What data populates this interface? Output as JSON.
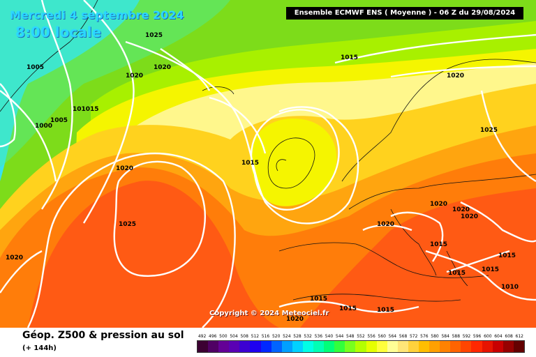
{
  "header": {
    "date": "Mercredi 4 septembre 2024",
    "local_time": "8:00 locale",
    "model_info": "Ensemble ECMWF ENS  ( Moyenne )  -  06 Z du 29/08/2024"
  },
  "copyright": "Copyright © 2024 Meteociel.fr",
  "footer": {
    "title": "Géop. Z500 & pression au sol",
    "subtitle": "(+ 144h)"
  },
  "isobar_labels": [
    "1025",
    "1005",
    "1020",
    "1020",
    "1015",
    "1000",
    "1005",
    "101015",
    "1020",
    "1025",
    "1015",
    "1015",
    "1020",
    "1025",
    "1020",
    "1020",
    "1020",
    "1020",
    "1020",
    "1015",
    "1015",
    "1015",
    "1010",
    "1015",
    "1015",
    "1015",
    "1015",
    "1020"
  ],
  "scale": {
    "labels": [
      "492",
      "496",
      "500",
      "504",
      "508",
      "512",
      "516",
      "520",
      "524",
      "528",
      "532",
      "536",
      "540",
      "544",
      "548",
      "552",
      "556",
      "560",
      "564",
      "568",
      "572",
      "576",
      "580",
      "584",
      "588",
      "592",
      "596",
      "600",
      "604",
      "608",
      "612"
    ],
    "colors": [
      "#3c0032",
      "#500064",
      "#640096",
      "#5a00b4",
      "#3c00d2",
      "#1e00f0",
      "#0028ff",
      "#0064ff",
      "#00a0ff",
      "#00d2ff",
      "#00ffe6",
      "#00ffb4",
      "#00ff78",
      "#32ff3c",
      "#78ff1e",
      "#b4ff00",
      "#e6ff00",
      "#ffff3c",
      "#ffff96",
      "#ffe678",
      "#ffd23c",
      "#ffbe00",
      "#ffa000",
      "#ff8200",
      "#ff6400",
      "#ff4600",
      "#ff2800",
      "#e61400",
      "#c80000",
      "#960000",
      "#640000"
    ]
  }
}
